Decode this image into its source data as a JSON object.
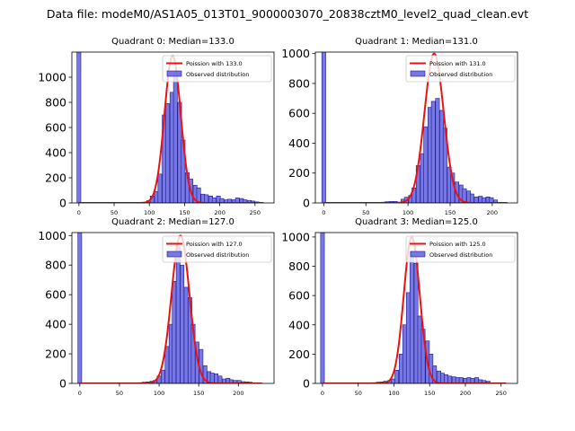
{
  "figure": {
    "suptitle": "Data file: modeM0/AS1A05_013T01_9000003070_20838cztM0_level2_quad_clean.evt"
  },
  "colors": {
    "bar_fill": "#7777e6",
    "bar_edge": "#1a1a8a",
    "curve": "#ee1111",
    "axis": "#000000"
  },
  "chart_data": [
    {
      "type": "bar",
      "title": "Quadrant 0: Median=133.0",
      "median": 133.0,
      "legend": [
        "Poission with 133.0",
        "Observed distribution"
      ],
      "legend_position": "top-right",
      "xlim": [
        -10,
        277
      ],
      "ylim": [
        0,
        1200
      ],
      "xticks": [
        "0",
        "50",
        "100",
        "150",
        "200",
        "250"
      ],
      "xtick_values": [
        0,
        50,
        100,
        150,
        200,
        250
      ],
      "yticks": [
        "0",
        "200",
        "400",
        "600",
        "800",
        "1000"
      ],
      "ytick_values": [
        0,
        200,
        400,
        600,
        800,
        1000
      ],
      "bin_width": 5.5,
      "bins": [
        [
          0,
          1200
        ],
        [
          93,
          5
        ],
        [
          99,
          18
        ],
        [
          104,
          55
        ],
        [
          110,
          90
        ],
        [
          115,
          230
        ],
        [
          121,
          700
        ],
        [
          126,
          790
        ],
        [
          132,
          880
        ],
        [
          137,
          1000
        ],
        [
          143,
          800
        ],
        [
          148,
          500
        ],
        [
          154,
          240
        ],
        [
          159,
          190
        ],
        [
          165,
          140
        ],
        [
          170,
          120
        ],
        [
          176,
          70
        ],
        [
          181,
          65
        ],
        [
          187,
          55
        ],
        [
          192,
          40
        ],
        [
          198,
          55
        ],
        [
          203,
          35
        ],
        [
          209,
          25
        ],
        [
          214,
          30
        ],
        [
          220,
          25
        ],
        [
          225,
          40
        ],
        [
          231,
          35
        ],
        [
          236,
          25
        ],
        [
          242,
          20
        ],
        [
          247,
          15
        ],
        [
          253,
          8
        ]
      ],
      "curve": {
        "from": 0,
        "to": 262,
        "mu": 133.0,
        "sigma": 11.5,
        "peak": 1170
      }
    },
    {
      "type": "bar",
      "title": "Quadrant 1: Median=131.0",
      "median": 131.0,
      "legend": [
        "Poission with 131.0",
        "Observed distribution"
      ],
      "legend_position": "top-right",
      "xlim": [
        -10,
        230
      ],
      "ylim": [
        0,
        1010
      ],
      "xticks": [
        "0",
        "50",
        "100",
        "150",
        "200"
      ],
      "xtick_values": [
        0,
        50,
        100,
        150,
        200
      ],
      "yticks": [
        "0",
        "200",
        "400",
        "600",
        "800",
        "1000"
      ],
      "ytick_values": [
        0,
        200,
        400,
        600,
        800,
        1000
      ],
      "bin_width": 4.6,
      "bins": [
        [
          0,
          1010
        ],
        [
          71,
          5
        ],
        [
          75,
          8
        ],
        [
          80,
          10
        ],
        [
          85,
          10
        ],
        [
          89,
          5
        ],
        [
          94,
          25
        ],
        [
          98,
          38
        ],
        [
          103,
          50
        ],
        [
          107,
          100
        ],
        [
          112,
          250
        ],
        [
          117,
          330
        ],
        [
          121,
          510
        ],
        [
          126,
          640
        ],
        [
          130,
          680
        ],
        [
          135,
          700
        ],
        [
          140,
          620
        ],
        [
          144,
          500
        ],
        [
          149,
          240
        ],
        [
          153,
          200
        ],
        [
          158,
          140
        ],
        [
          163,
          120
        ],
        [
          167,
          95
        ],
        [
          172,
          80
        ],
        [
          176,
          60
        ],
        [
          181,
          40
        ],
        [
          186,
          45
        ],
        [
          190,
          35
        ],
        [
          195,
          40
        ],
        [
          199,
          35
        ],
        [
          204,
          20
        ]
      ],
      "curve": {
        "from": 0,
        "to": 218,
        "mu": 131.0,
        "sigma": 11.4,
        "peak": 1000
      }
    },
    {
      "type": "bar",
      "title": "Quadrant 2: Median=127.0",
      "median": 127.0,
      "legend": [
        "Poission with 127.0",
        "Observed distribution"
      ],
      "legend_position": "top-right",
      "xlim": [
        -10,
        245
      ],
      "ylim": [
        0,
        1020
      ],
      "xticks": [
        "0",
        "50",
        "100",
        "150",
        "200"
      ],
      "xtick_values": [
        0,
        50,
        100,
        150,
        200
      ],
      "yticks": [
        "0",
        "200",
        "400",
        "600",
        "800",
        "1000"
      ],
      "ytick_values": [
        0,
        200,
        400,
        600,
        800,
        1000
      ],
      "bin_width": 4.8,
      "bins": [
        [
          0,
          1020
        ],
        [
          76,
          5
        ],
        [
          81,
          8
        ],
        [
          86,
          10
        ],
        [
          91,
          15
        ],
        [
          95,
          20
        ],
        [
          100,
          50
        ],
        [
          105,
          90
        ],
        [
          110,
          250
        ],
        [
          115,
          400
        ],
        [
          119,
          690
        ],
        [
          124,
          920
        ],
        [
          129,
          800
        ],
        [
          134,
          650
        ],
        [
          139,
          580
        ],
        [
          143,
          400
        ],
        [
          148,
          280
        ],
        [
          153,
          230
        ],
        [
          158,
          120
        ],
        [
          163,
          80
        ],
        [
          167,
          70
        ],
        [
          172,
          65
        ],
        [
          177,
          50
        ],
        [
          182,
          30
        ],
        [
          187,
          35
        ],
        [
          191,
          25
        ],
        [
          196,
          20
        ],
        [
          201,
          20
        ],
        [
          206,
          12
        ],
        [
          211,
          10
        ],
        [
          215,
          8
        ]
      ],
      "curve": {
        "from": 0,
        "to": 230,
        "mu": 127.0,
        "sigma": 11.3,
        "peak": 1000
      }
    },
    {
      "type": "bar",
      "title": "Quadrant 3: Median=125.0",
      "median": 125.0,
      "legend": [
        "Poission with 125.0",
        "Observed distribution"
      ],
      "legend_position": "top-right",
      "xlim": [
        -10,
        273
      ],
      "ylim": [
        0,
        1030
      ],
      "xticks": [
        "0",
        "50",
        "100",
        "150",
        "200",
        "250"
      ],
      "xtick_values": [
        0,
        50,
        100,
        150,
        200,
        250
      ],
      "yticks": [
        "0",
        "200",
        "400",
        "600",
        "800",
        "1000"
      ],
      "ytick_values": [
        0,
        200,
        400,
        600,
        800,
        1000
      ],
      "bin_width": 5.3,
      "bins": [
        [
          0,
          1030
        ],
        [
          73,
          5
        ],
        [
          78,
          8
        ],
        [
          83,
          10
        ],
        [
          88,
          15
        ],
        [
          94,
          20
        ],
        [
          99,
          30
        ],
        [
          104,
          90
        ],
        [
          110,
          200
        ],
        [
          115,
          400
        ],
        [
          120,
          620
        ],
        [
          125,
          900
        ],
        [
          131,
          820
        ],
        [
          136,
          460
        ],
        [
          141,
          370
        ],
        [
          147,
          290
        ],
        [
          152,
          200
        ],
        [
          157,
          120
        ],
        [
          163,
          85
        ],
        [
          168,
          70
        ],
        [
          173,
          60
        ],
        [
          178,
          50
        ],
        [
          184,
          45
        ],
        [
          189,
          40
        ],
        [
          194,
          40
        ],
        [
          200,
          35
        ],
        [
          205,
          40
        ],
        [
          210,
          35
        ],
        [
          216,
          40
        ],
        [
          221,
          25
        ],
        [
          226,
          20
        ],
        [
          232,
          15
        ]
      ],
      "curve": {
        "from": 0,
        "to": 257,
        "mu": 125.0,
        "sigma": 11.2,
        "peak": 1000
      }
    }
  ]
}
